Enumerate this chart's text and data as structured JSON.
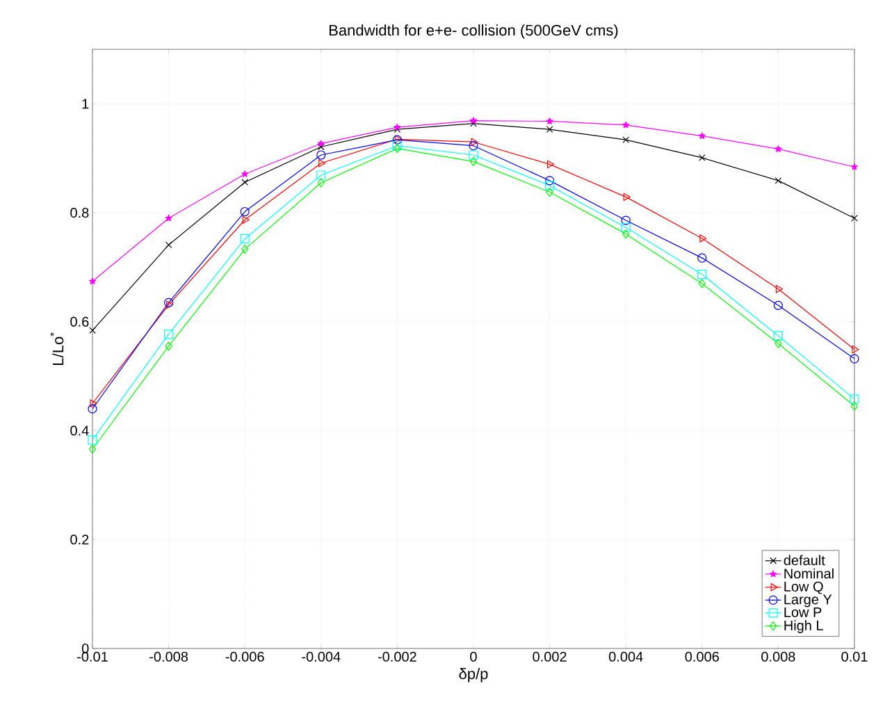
{
  "chart_data": {
    "type": "line",
    "title": "Bandwidth for e+e- collision (500GeV cms)",
    "xlabel": "δp/p",
    "ylabel": "L/Lo$^{*}$",
    "x": [
      -0.01,
      -0.008,
      -0.006,
      -0.004,
      -0.002,
      0,
      0.002,
      0.004,
      0.006,
      0.008,
      0.01
    ],
    "series": [
      {
        "name": "default",
        "color": "#000000",
        "marker": "cross",
        "values": [
          0.584,
          0.741,
          0.856,
          0.921,
          0.953,
          0.964,
          0.953,
          0.934,
          0.901,
          0.859,
          0.79
        ]
      },
      {
        "name": "Nominal",
        "color": "#ff00ff",
        "marker": "star",
        "values": [
          0.674,
          0.79,
          0.871,
          0.927,
          0.957,
          0.969,
          0.968,
          0.961,
          0.941,
          0.917,
          0.884
        ]
      },
      {
        "name": "Low Q",
        "color": "#ff0000",
        "marker": "triangle",
        "values": [
          0.45,
          0.631,
          0.787,
          0.891,
          0.935,
          0.93,
          0.889,
          0.829,
          0.753,
          0.66,
          0.549
        ]
      },
      {
        "name": "Large Y",
        "color": "#0000ff",
        "marker": "circle",
        "values": [
          0.44,
          0.635,
          0.802,
          0.906,
          0.934,
          0.923,
          0.859,
          0.786,
          0.717,
          0.63,
          0.532
        ]
      },
      {
        "name": "Low P",
        "color": "#00ffff",
        "marker": "square",
        "values": [
          0.383,
          0.577,
          0.752,
          0.869,
          0.923,
          0.906,
          0.85,
          0.773,
          0.687,
          0.574,
          0.458
        ]
      },
      {
        "name": "High L",
        "color": "#00ff00",
        "marker": "diamond",
        "values": [
          0.366,
          0.555,
          0.733,
          0.855,
          0.918,
          0.894,
          0.838,
          0.761,
          0.67,
          0.56,
          0.445
        ]
      }
    ],
    "xlim": [
      -0.01,
      0.01
    ],
    "ylim": [
      0,
      1.1
    ],
    "xticks": [
      -0.01,
      -0.008,
      -0.006,
      -0.004,
      -0.002,
      0,
      0.002,
      0.004,
      0.006,
      0.008,
      0.01
    ],
    "yticks": [
      0,
      0.2,
      0.4,
      0.6,
      0.8,
      1
    ],
    "grid": true,
    "legend": "bottom right",
    "line_style": "solid"
  }
}
